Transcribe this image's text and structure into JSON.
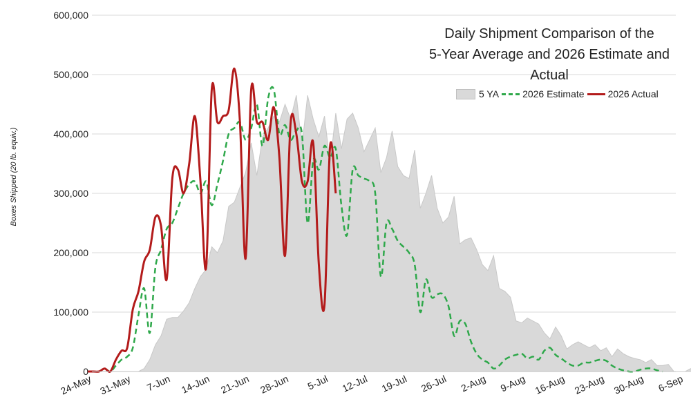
{
  "chart_data": {
    "type": "area",
    "title_lines": [
      "Daily Shipment Comparison of the",
      "5-Year Average and 2026 Estimate and",
      "Actual"
    ],
    "ylabel": "Boxes Shipped (20 lb. equiv.)",
    "xlabel": "",
    "ylim": [
      0,
      600000
    ],
    "y_ticks": [
      "0",
      "100,000",
      "200,000",
      "300,000",
      "400,000",
      "500,000",
      "600,000"
    ],
    "x_ticks": [
      "24-May",
      "31-May",
      "7-Jun",
      "14-Jun",
      "21-Jun",
      "28-Jun",
      "5-Jul",
      "12-Jul",
      "19-Jul",
      "26-Jul",
      "2-Aug",
      "9-Aug",
      "16-Aug",
      "23-Aug",
      "30-Aug",
      "6-Sep"
    ],
    "x_start": "24-May",
    "gridlines": true,
    "legend_position": "top-right",
    "series": [
      {
        "name": "5 YA",
        "style": "area",
        "color": "#d9d9d9",
        "values": [
          0,
          0,
          0,
          0,
          0,
          0,
          0,
          0,
          0,
          0,
          5000,
          20000,
          45000,
          60000,
          88000,
          91000,
          91000,
          102000,
          116000,
          140000,
          160000,
          172000,
          210000,
          200000,
          220000,
          278000,
          285000,
          310000,
          335000,
          385000,
          330000,
          395000,
          410000,
          430000,
          420000,
          450000,
          425000,
          465000,
          380000,
          465000,
          425000,
          395000,
          430000,
          350000,
          435000,
          375000,
          425000,
          435000,
          410000,
          370000,
          390000,
          410000,
          335000,
          360000,
          405000,
          345000,
          330000,
          325000,
          373000,
          275000,
          300000,
          330000,
          275000,
          250000,
          260000,
          295000,
          215000,
          222000,
          225000,
          205000,
          180000,
          170000,
          195000,
          140000,
          135000,
          125000,
          85000,
          82000,
          90000,
          85000,
          80000,
          65000,
          55000,
          75000,
          60000,
          38000,
          45000,
          50000,
          45000,
          40000,
          45000,
          35000,
          40000,
          25000,
          38000,
          30000,
          25000,
          22000,
          20000,
          15000,
          20000,
          10000,
          10000,
          12000,
          0,
          0,
          0,
          5000,
          2000,
          0
        ]
      },
      {
        "name": "2026 Estimate",
        "style": "dashed",
        "color": "#2ea84a",
        "values": [
          0,
          0,
          0,
          5000,
          0,
          10000,
          20000,
          25000,
          40000,
          95000,
          140000,
          65000,
          175000,
          205000,
          240000,
          250000,
          275000,
          300000,
          315000,
          320000,
          300000,
          320000,
          280000,
          315000,
          355000,
          400000,
          410000,
          420000,
          390000,
          410000,
          450000,
          380000,
          460000,
          475000,
          400000,
          415000,
          390000,
          405000,
          400000,
          250000,
          355000,
          340000,
          380000,
          360000,
          375000,
          280000,
          230000,
          340000,
          330000,
          325000,
          320000,
          300000,
          160000,
          250000,
          240000,
          220000,
          210000,
          200000,
          180000,
          100000,
          155000,
          125000,
          130000,
          130000,
          110000,
          60000,
          85000,
          80000,
          50000,
          30000,
          20000,
          15000,
          5000,
          10000,
          20000,
          25000,
          28000,
          30000,
          22000,
          25000,
          20000,
          35000,
          40000,
          28000,
          22000,
          15000,
          10000,
          10000,
          15000,
          15000,
          18000,
          20000,
          18000,
          10000,
          5000,
          2000,
          0,
          0,
          3000,
          5000,
          5000,
          2000,
          0
        ]
      },
      {
        "name": "2026 Actual",
        "style": "solid",
        "color": "#b31b1b",
        "values": [
          0,
          0,
          0,
          5000,
          0,
          20000,
          35000,
          40000,
          105000,
          135000,
          185000,
          205000,
          260000,
          245000,
          155000,
          325000,
          340000,
          300000,
          350000,
          430000,
          320000,
          175000,
          475000,
          420000,
          430000,
          440000,
          510000,
          420000,
          190000,
          475000,
          420000,
          420000,
          390000,
          445000,
          360000,
          195000,
          420000,
          400000,
          320000,
          320000,
          385000,
          180000,
          112000,
          380000,
          300000
        ]
      }
    ]
  }
}
